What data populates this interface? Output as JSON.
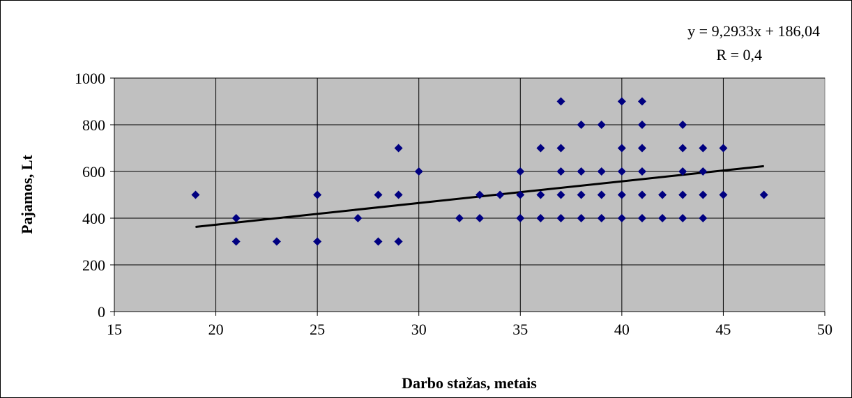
{
  "chart_data": {
    "type": "scatter",
    "xlabel": "Darbo stažas, metais",
    "ylabel": "Pajamos, Lt",
    "xlim": [
      15,
      50
    ],
    "ylim": [
      0,
      1000
    ],
    "x_ticks": [
      "15",
      "20",
      "25",
      "30",
      "35",
      "40",
      "45",
      "50"
    ],
    "y_ticks": [
      "0",
      "200",
      "400",
      "600",
      "800",
      "1000"
    ],
    "grid": true,
    "legend": "none",
    "plot_background": "#c0c0c0",
    "marker_color": "#000080",
    "marker": "diamond",
    "trendline": {
      "slope": 9.2933,
      "intercept": 186.04,
      "x_range": [
        19,
        47
      ],
      "color": "#000000",
      "equation_label": "y = 9,2933x + 186,04",
      "r_label": "R = 0,4"
    },
    "points": [
      [
        19,
        500
      ],
      [
        21,
        400
      ],
      [
        21,
        300
      ],
      [
        23,
        300
      ],
      [
        25,
        500
      ],
      [
        25,
        300
      ],
      [
        27,
        400
      ],
      [
        28,
        500
      ],
      [
        28,
        300
      ],
      [
        29,
        700
      ],
      [
        29,
        500
      ],
      [
        29,
        300
      ],
      [
        30,
        600
      ],
      [
        32,
        400
      ],
      [
        33,
        500
      ],
      [
        33,
        400
      ],
      [
        34,
        500
      ],
      [
        35,
        600
      ],
      [
        35,
        500
      ],
      [
        35,
        400
      ],
      [
        36,
        700
      ],
      [
        36,
        500
      ],
      [
        36,
        400
      ],
      [
        37,
        900
      ],
      [
        37,
        700
      ],
      [
        37,
        600
      ],
      [
        37,
        500
      ],
      [
        37,
        400
      ],
      [
        38,
        800
      ],
      [
        38,
        600
      ],
      [
        38,
        500
      ],
      [
        38,
        400
      ],
      [
        39,
        800
      ],
      [
        39,
        600
      ],
      [
        39,
        500
      ],
      [
        39,
        400
      ],
      [
        40,
        900
      ],
      [
        40,
        700
      ],
      [
        40,
        600
      ],
      [
        40,
        500
      ],
      [
        40,
        400
      ],
      [
        41,
        900
      ],
      [
        41,
        800
      ],
      [
        41,
        700
      ],
      [
        41,
        600
      ],
      [
        41,
        500
      ],
      [
        41,
        400
      ],
      [
        42,
        500
      ],
      [
        42,
        400
      ],
      [
        43,
        800
      ],
      [
        43,
        700
      ],
      [
        43,
        600
      ],
      [
        43,
        500
      ],
      [
        43,
        400
      ],
      [
        44,
        700
      ],
      [
        44,
        600
      ],
      [
        44,
        500
      ],
      [
        44,
        400
      ],
      [
        45,
        700
      ],
      [
        45,
        500
      ],
      [
        47,
        500
      ]
    ]
  }
}
